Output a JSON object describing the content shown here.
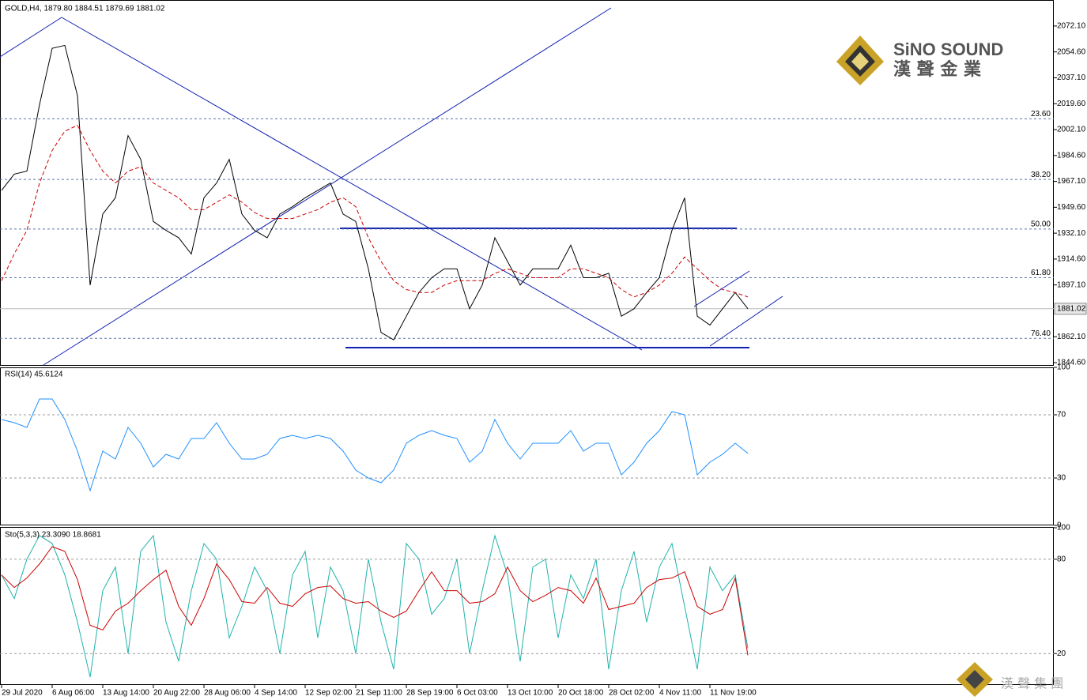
{
  "chart_data": [
    {
      "type": "line",
      "title": "GOLD,H4, 1879.80 1884.51 1879.69 1881.02",
      "ylim": [
        1843.0,
        2088.6
      ],
      "yticks": [
        {
          "value": 2072.1,
          "label": "2072.10"
        },
        {
          "value": 2054.6,
          "label": "2054.60"
        },
        {
          "value": 2037.1,
          "label": "2037.10"
        },
        {
          "value": 2019.6,
          "label": "2019.60"
        },
        {
          "value": 2002.1,
          "label": "2002.10"
        },
        {
          "value": 1984.6,
          "label": "1984.60"
        },
        {
          "value": 1967.1,
          "label": "1967.10"
        },
        {
          "value": 1949.6,
          "label": "1949.60"
        },
        {
          "value": 1932.1,
          "label": "1932.10"
        },
        {
          "value": 1914.6,
          "label": "1914.60"
        },
        {
          "value": 1897.1,
          "label": "1897.10"
        },
        {
          "value": 1862.1,
          "label": "1862.10"
        },
        {
          "value": 1844.6,
          "label": "1844.60"
        }
      ],
      "grid": false,
      "last_price": 1881.02,
      "fib_levels": [
        {
          "label": "23.60",
          "price": 2009.4
        },
        {
          "label": "38.20",
          "price": 1968.4
        },
        {
          "label": "50.00",
          "price": 1934.9
        },
        {
          "label": "61.80",
          "price": 1902.0
        },
        {
          "label": "76.40",
          "price": 1861.0
        }
      ],
      "series": [
        {
          "color": "#000000",
          "dash": false,
          "values": [
            1961,
            1972,
            1974,
            2019,
            2057,
            2059,
            2025,
            1897,
            1945,
            1956,
            1998,
            1982,
            1940,
            1934,
            1929,
            1918,
            1956,
            1966,
            1982,
            1945,
            1934,
            1929,
            1945,
            1950,
            1956,
            1961,
            1966,
            1945,
            1940,
            1908,
            1865,
            1860,
            1876,
            1892,
            1902,
            1908,
            1908,
            1881,
            1897,
            1929,
            1913,
            1897,
            1908,
            1908,
            1908,
            1924,
            1902,
            1902,
            1905,
            1876,
            1881,
            1892,
            1902,
            1934,
            1956,
            1876,
            1870,
            1881,
            1892,
            1881.02
          ]
        },
        {
          "color": "#cc0000",
          "dash": true,
          "values": [
            1900,
            1918,
            1934,
            1966,
            1988,
            2001,
            2005,
            1988,
            1974,
            1966,
            1974,
            1977,
            1966,
            1961,
            1956,
            1948,
            1948,
            1953,
            1958,
            1953,
            1946,
            1942,
            1942,
            1942,
            1945,
            1948,
            1953,
            1956,
            1950,
            1929,
            1913,
            1900,
            1894,
            1892,
            1892,
            1897,
            1900,
            1900,
            1900,
            1905,
            1908,
            1905,
            1902,
            1902,
            1902,
            1908,
            1908,
            1905,
            1902,
            1894,
            1889,
            1892,
            1897,
            1905,
            1916,
            1908,
            1900,
            1894,
            1892,
            1889
          ]
        }
      ]
    },
    {
      "type": "line",
      "title": "RSI(14) 45.6124",
      "ylim": [
        0,
        100
      ],
      "yticks": [
        0,
        30,
        70,
        100
      ],
      "grid": true,
      "series": [
        {
          "color": "#1e90ff",
          "dash": false,
          "values": [
            67,
            65,
            62,
            80,
            80,
            67,
            47,
            22,
            47,
            42,
            62,
            52,
            37,
            45,
            42,
            55,
            55,
            65,
            52,
            42,
            42,
            45,
            55,
            57,
            55,
            57,
            55,
            47,
            35,
            30,
            27,
            35,
            52,
            57,
            60,
            57,
            55,
            40,
            47,
            67,
            52,
            42,
            52,
            52,
            52,
            60,
            47,
            52,
            52,
            32,
            40,
            52,
            60,
            72,
            70,
            32,
            40,
            45,
            52,
            45.6
          ]
        }
      ]
    },
    {
      "type": "line",
      "title": "Sto(5,3,3) 23.3090 18.8681",
      "ylim": [
        0,
        100
      ],
      "yticks": [
        20,
        80,
        100
      ],
      "grid": true,
      "categories": [
        "29 Jul 2020",
        null,
        null,
        null,
        "6 Aug 06:00",
        null,
        null,
        null,
        "13 Aug 14:00",
        null,
        null,
        null,
        "20 Aug 22:00",
        null,
        null,
        null,
        "28 Aug 06:00",
        null,
        null,
        null,
        "4 Sep 14:00",
        null,
        null,
        null,
        "12 Sep 02:00",
        null,
        null,
        null,
        "21 Sep 11:00",
        null,
        null,
        null,
        "28 Sep 19:00",
        null,
        null,
        null,
        "6 Oct 03:00",
        null,
        null,
        null,
        "13 Oct 10:00",
        null,
        null,
        null,
        "20 Oct 18:00",
        null,
        null,
        null,
        "28 Oct 02:00",
        null,
        null,
        null,
        "4 Nov 11:00",
        null,
        null,
        null,
        "11 Nov 19:00",
        null,
        null,
        null
      ],
      "series": [
        {
          "color": "#20b2aa",
          "dash": false,
          "values": [
            70,
            55,
            80,
            95,
            90,
            70,
            40,
            5,
            60,
            75,
            20,
            85,
            95,
            40,
            15,
            60,
            90,
            80,
            30,
            50,
            75,
            60,
            20,
            70,
            85,
            30,
            75,
            60,
            20,
            80,
            40,
            10,
            90,
            80,
            45,
            55,
            80,
            20,
            60,
            95,
            70,
            15,
            75,
            80,
            30,
            70,
            55,
            80,
            10,
            60,
            85,
            40,
            75,
            90,
            50,
            10,
            75,
            60,
            70,
            23.3
          ]
        },
        {
          "color": "#cc0000",
          "dash": false,
          "values": [
            70,
            62,
            68,
            77,
            88,
            85,
            67,
            38,
            35,
            47,
            52,
            60,
            67,
            73,
            50,
            38,
            55,
            77,
            67,
            53,
            52,
            62,
            52,
            50,
            58,
            62,
            63,
            55,
            52,
            53,
            47,
            43,
            47,
            60,
            72,
            60,
            60,
            52,
            53,
            58,
            75,
            60,
            53,
            57,
            62,
            60,
            52,
            68,
            48,
            50,
            52,
            62,
            67,
            68,
            72,
            50,
            45,
            48,
            68,
            18.9
          ]
        }
      ]
    }
  ],
  "logo": {
    "name": "SiNO SOUND",
    "chinese": "漢 聲 金 業"
  },
  "footer_logo": {
    "chinese": "漢 聲 集 團"
  }
}
